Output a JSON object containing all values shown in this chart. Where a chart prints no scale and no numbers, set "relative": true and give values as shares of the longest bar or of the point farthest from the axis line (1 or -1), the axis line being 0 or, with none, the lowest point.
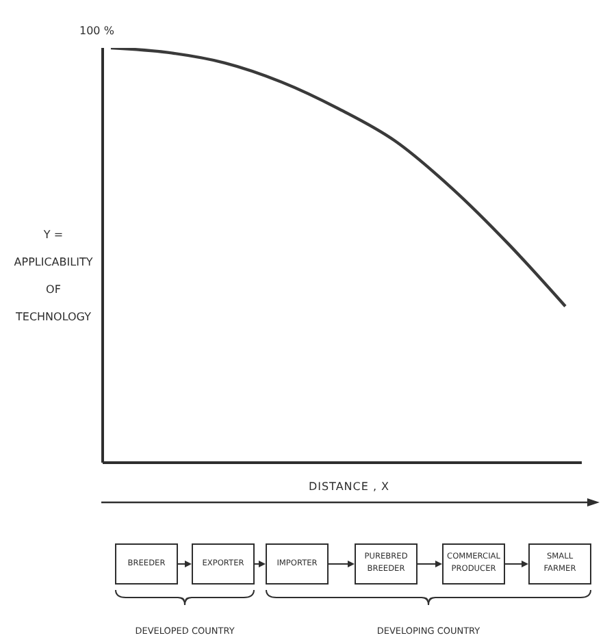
{
  "chart_data": {
    "type": "line",
    "relative": true,
    "xlabel": "DISTANCE , X",
    "ylabel": "Y = APPLICABILITY OF TECHNOLOGY",
    "categories": [
      null,
      null,
      null,
      null,
      null,
      null,
      null,
      null,
      null
    ],
    "series": [
      {
        "color": "#3a3a3a",
        "values": [
          1,
          0.989,
          0.964,
          0.918,
          0.854,
          0.776,
          0.662,
          0.527,
          0.377
        ]
      }
    ],
    "annotations": [
      "100 %",
      "BREEDER",
      "EXPORTER",
      "IMPORTER",
      "PUREBRED BREEDER",
      "COMMERCIAL PRODUCER",
      "SMALL FARMER",
      "DEVELOPED COUNTRY",
      "DEVELOPING COUNTRY"
    ],
    "marker": "none",
    "line_style": "solid",
    "grid": false,
    "legend": false
  }
}
